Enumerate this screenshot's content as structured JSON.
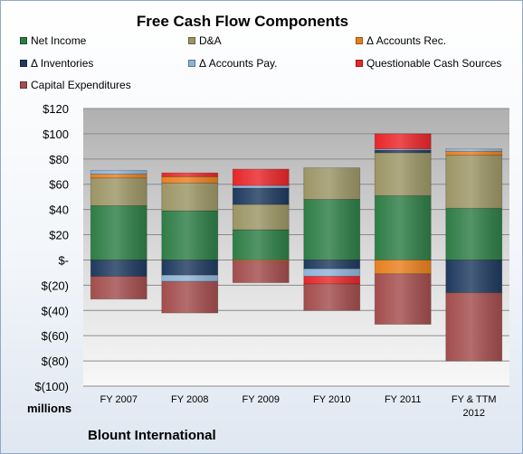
{
  "chart_data": {
    "type": "bar",
    "stacked": true,
    "title": "Free Cash Flow Components",
    "units_label": "millions",
    "categories": [
      "FY 2007",
      "FY 2008",
      "FY 2009",
      "FY 2010",
      "FY 2011",
      "FY & TTM 2012"
    ],
    "ylim": [
      -100,
      120
    ],
    "yticks": [
      120,
      100,
      80,
      60,
      40,
      20,
      0,
      -20,
      -40,
      -60,
      -80,
      -100
    ],
    "ytick_labels": [
      "$120",
      "$100",
      "$80",
      "$60",
      "$40",
      "$20",
      "$-",
      "$(20)",
      "$(40)",
      "$(60)",
      "$(80)",
      "$(100)"
    ],
    "grid": true,
    "legend_position": "top",
    "series": [
      {
        "name": "Net Income",
        "color": "#2e7d46",
        "values": [
          43,
          39,
          24,
          48,
          51,
          41
        ]
      },
      {
        "name": "D&A",
        "color": "#9c9566",
        "values": [
          22,
          22,
          20,
          25,
          34,
          42
        ]
      },
      {
        "name": "Δ Accounts Rec.",
        "color": "#e8801e",
        "values": [
          3,
          5,
          -1,
          0,
          -11,
          3
        ]
      },
      {
        "name": "Δ Inventories",
        "color": "#1f3a5f",
        "values": [
          -13,
          -12,
          13,
          -7,
          2,
          -26
        ]
      },
      {
        "name": "Δ Accounts Pay.",
        "color": "#8fb3d8",
        "values": [
          3,
          -5,
          2,
          -6,
          1,
          2
        ]
      },
      {
        "name": "Questionable Cash Sources",
        "color": "#e8262a",
        "values": [
          0,
          3,
          13,
          -6,
          12,
          0
        ]
      },
      {
        "name": "Capital Expenditures",
        "color": "#a34d4d",
        "values": [
          -18,
          -25,
          -17,
          -21,
          -40,
          -54
        ]
      }
    ]
  },
  "footer": {
    "company": "Blount International"
  }
}
